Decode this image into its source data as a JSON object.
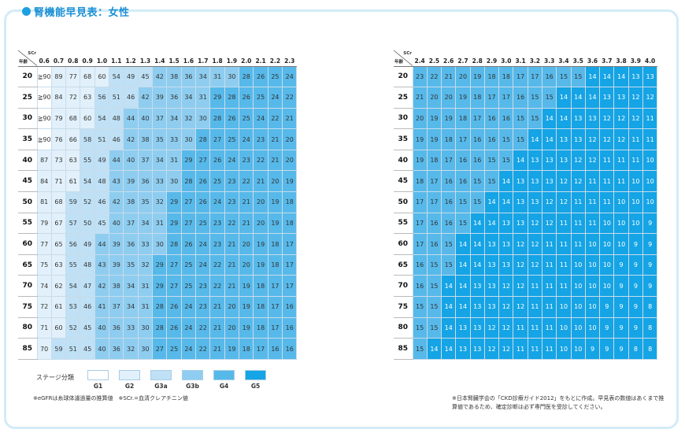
{
  "title": "腎機能早見表：女性",
  "corner": {
    "scr_label": "SCr",
    "age_label": "年齢"
  },
  "left_table": {
    "scr": [
      "0.6",
      "0.7",
      "0.8",
      "0.9",
      "1.0",
      "1.1",
      "1.2",
      "1.3",
      "1.4",
      "1.5",
      "1.6",
      "1.7",
      "1.8",
      "1.9",
      "2.0",
      "2.1",
      "2.2",
      "2.3"
    ],
    "ages": [
      "20",
      "25",
      "30",
      "35",
      "40",
      "45",
      "50",
      "55",
      "60",
      "65",
      "70",
      "75",
      "80",
      "85"
    ],
    "values": [
      [
        "≧90",
        "89",
        "77",
        "68",
        "60",
        "54",
        "49",
        "45",
        "42",
        "38",
        "36",
        "34",
        "31",
        "30",
        "28",
        "26",
        "25",
        "24"
      ],
      [
        "≧90",
        "84",
        "72",
        "63",
        "56",
        "51",
        "46",
        "42",
        "39",
        "36",
        "34",
        "31",
        "29",
        "28",
        "26",
        "25",
        "24",
        "22"
      ],
      [
        "≧90",
        "79",
        "68",
        "60",
        "54",
        "48",
        "44",
        "40",
        "37",
        "34",
        "32",
        "30",
        "28",
        "26",
        "25",
        "24",
        "22",
        "21"
      ],
      [
        "≧90",
        "76",
        "66",
        "58",
        "51",
        "46",
        "42",
        "38",
        "35",
        "33",
        "30",
        "28",
        "27",
        "25",
        "24",
        "23",
        "21",
        "20"
      ],
      [
        "87",
        "73",
        "63",
        "55",
        "49",
        "44",
        "40",
        "37",
        "34",
        "31",
        "29",
        "27",
        "26",
        "24",
        "23",
        "22",
        "21",
        "20"
      ],
      [
        "84",
        "71",
        "61",
        "54",
        "48",
        "43",
        "39",
        "36",
        "33",
        "30",
        "28",
        "26",
        "25",
        "23",
        "22",
        "21",
        "20",
        "19"
      ],
      [
        "81",
        "68",
        "59",
        "52",
        "46",
        "42",
        "38",
        "35",
        "32",
        "29",
        "27",
        "26",
        "24",
        "23",
        "21",
        "20",
        "19",
        "18"
      ],
      [
        "79",
        "67",
        "57",
        "50",
        "45",
        "40",
        "37",
        "34",
        "31",
        "29",
        "27",
        "25",
        "23",
        "22",
        "21",
        "20",
        "19",
        "18"
      ],
      [
        "77",
        "65",
        "56",
        "49",
        "44",
        "39",
        "36",
        "33",
        "30",
        "28",
        "26",
        "24",
        "23",
        "21",
        "20",
        "19",
        "18",
        "17"
      ],
      [
        "75",
        "63",
        "55",
        "48",
        "43",
        "39",
        "35",
        "32",
        "29",
        "27",
        "25",
        "24",
        "22",
        "21",
        "20",
        "19",
        "18",
        "17"
      ],
      [
        "74",
        "62",
        "54",
        "47",
        "42",
        "38",
        "34",
        "31",
        "29",
        "27",
        "25",
        "23",
        "22",
        "21",
        "19",
        "18",
        "17",
        "17"
      ],
      [
        "72",
        "61",
        "53",
        "46",
        "41",
        "37",
        "34",
        "31",
        "28",
        "26",
        "24",
        "23",
        "21",
        "20",
        "19",
        "18",
        "17",
        "16"
      ],
      [
        "71",
        "60",
        "52",
        "45",
        "40",
        "36",
        "33",
        "30",
        "28",
        "26",
        "24",
        "22",
        "21",
        "20",
        "19",
        "18",
        "17",
        "16"
      ],
      [
        "70",
        "59",
        "51",
        "45",
        "40",
        "36",
        "32",
        "30",
        "27",
        "25",
        "24",
        "22",
        "21",
        "19",
        "18",
        "17",
        "16",
        "16"
      ]
    ]
  },
  "right_table": {
    "scr": [
      "2.4",
      "2.5",
      "2.6",
      "2.7",
      "2.8",
      "2.9",
      "3.0",
      "3.1",
      "3.2",
      "3.3",
      "3.4",
      "3.5",
      "3.6",
      "3.7",
      "3.8",
      "3.9",
      "4.0"
    ],
    "ages": [
      "20",
      "25",
      "30",
      "35",
      "40",
      "45",
      "50",
      "55",
      "60",
      "65",
      "70",
      "75",
      "80",
      "85"
    ],
    "values": [
      [
        "23",
        "22",
        "21",
        "20",
        "19",
        "18",
        "18",
        "17",
        "17",
        "16",
        "15",
        "15",
        "14",
        "14",
        "14",
        "13",
        "13"
      ],
      [
        "21",
        "20",
        "20",
        "19",
        "18",
        "17",
        "17",
        "16",
        "15",
        "15",
        "14",
        "14",
        "14",
        "13",
        "13",
        "12",
        "12"
      ],
      [
        "20",
        "19",
        "19",
        "18",
        "17",
        "16",
        "16",
        "15",
        "15",
        "14",
        "14",
        "13",
        "13",
        "12",
        "12",
        "12",
        "11"
      ],
      [
        "19",
        "19",
        "18",
        "17",
        "16",
        "16",
        "15",
        "15",
        "14",
        "14",
        "13",
        "13",
        "12",
        "12",
        "12",
        "11",
        "11"
      ],
      [
        "19",
        "18",
        "17",
        "16",
        "16",
        "15",
        "15",
        "14",
        "13",
        "13",
        "13",
        "12",
        "12",
        "11",
        "11",
        "11",
        "10"
      ],
      [
        "18",
        "17",
        "16",
        "16",
        "15",
        "15",
        "14",
        "13",
        "13",
        "13",
        "12",
        "12",
        "11",
        "11",
        "11",
        "10",
        "10"
      ],
      [
        "17",
        "17",
        "16",
        "15",
        "15",
        "14",
        "14",
        "13",
        "13",
        "12",
        "12",
        "11",
        "11",
        "11",
        "10",
        "10",
        "10"
      ],
      [
        "17",
        "16",
        "16",
        "15",
        "14",
        "14",
        "13",
        "13",
        "12",
        "12",
        "11",
        "11",
        "11",
        "10",
        "10",
        "10",
        "9"
      ],
      [
        "17",
        "16",
        "15",
        "14",
        "14",
        "13",
        "13",
        "12",
        "12",
        "11",
        "11",
        "11",
        "10",
        "10",
        "10",
        "9",
        "9"
      ],
      [
        "16",
        "15",
        "15",
        "14",
        "14",
        "13",
        "13",
        "12",
        "12",
        "11",
        "11",
        "10",
        "10",
        "10",
        "9",
        "9",
        "9"
      ],
      [
        "16",
        "15",
        "14",
        "14",
        "13",
        "13",
        "12",
        "12",
        "11",
        "11",
        "11",
        "10",
        "10",
        "10",
        "9",
        "9",
        "9"
      ],
      [
        "15",
        "15",
        "14",
        "14",
        "13",
        "13",
        "12",
        "12",
        "11",
        "11",
        "10",
        "10",
        "10",
        "9",
        "9",
        "9",
        "8"
      ],
      [
        "15",
        "15",
        "14",
        "13",
        "13",
        "12",
        "12",
        "11",
        "11",
        "11",
        "10",
        "10",
        "10",
        "9",
        "9",
        "9",
        "8"
      ],
      [
        "15",
        "14",
        "14",
        "13",
        "13",
        "12",
        "12",
        "11",
        "11",
        "11",
        "10",
        "10",
        "9",
        "9",
        "9",
        "8",
        "8"
      ]
    ]
  },
  "stage_thresholds": {
    "G1": 90,
    "G2": 60,
    "G3a": 45,
    "G3b": 30,
    "G4": 15
  },
  "stage_colors": {
    "G1": "#ffffff",
    "G2": "#e1f0fa",
    "G3a": "#bfe0f5",
    "G3b": "#8ecdf0",
    "G4": "#56b9ea",
    "G5": "#15a4e5"
  },
  "legend": {
    "label": "ステージ分類",
    "stages": [
      "G1",
      "G2",
      "G3a",
      "G3b",
      "G4",
      "G5"
    ]
  },
  "note_left": "※eGFRは糸球体濾過量の推算値　※SCr.=血清クレアチニン値",
  "note_right": "※日本腎臓学会の「CKD診療ガイド2012」をもとに作成。早見表の数値はあくまで推算値であるため、確定診断は必ず専門医を受診してください。"
}
